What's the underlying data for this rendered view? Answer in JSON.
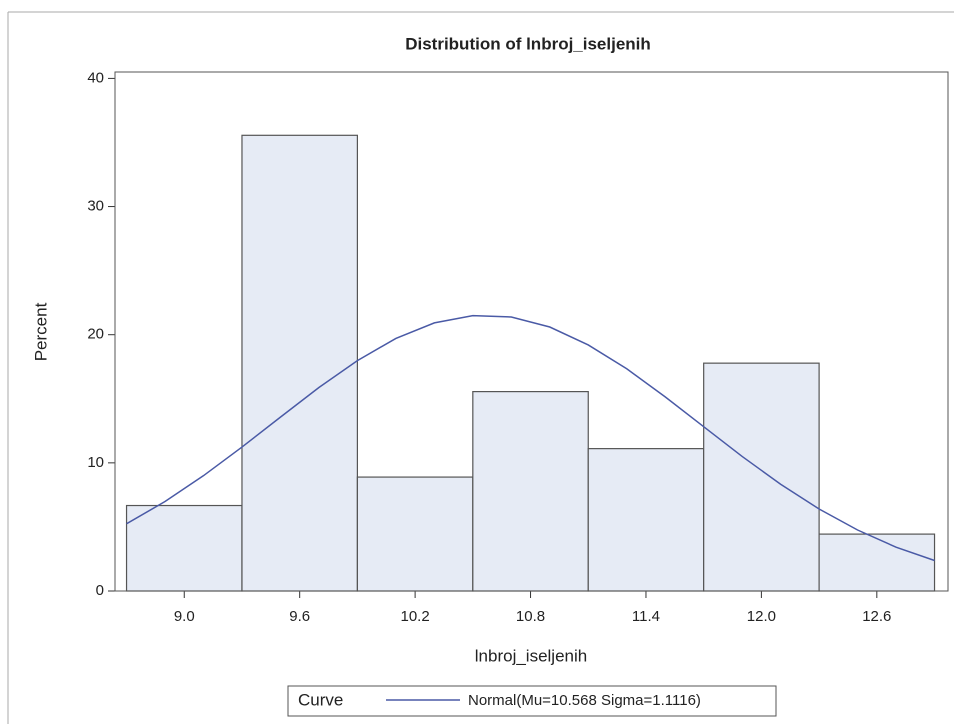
{
  "chart_data": {
    "type": "histogram",
    "title": "Distribution of lnbroj_iseljenih",
    "x_label": "lnbroj_iseljenih",
    "y_label": "Percent",
    "bins": [
      8.7,
      9.3,
      9.9,
      10.5,
      11.1,
      11.7,
      12.3,
      12.9
    ],
    "values": [
      6.67,
      35.56,
      8.89,
      15.56,
      11.11,
      17.78,
      4.44
    ],
    "color": "#e6ebf5",
    "edge_color": "#555555",
    "xlim": [
      8.64,
      12.97
    ],
    "ylim": [
      0,
      40.5
    ],
    "xticks": [
      {
        "value": 9,
        "label": "9.0"
      },
      9.6,
      10.2,
      10.8,
      11.4,
      {
        "value": 12,
        "label": "12.0"
      },
      12.6
    ],
    "yticks": [
      0,
      10,
      20,
      30,
      40
    ],
    "grid": false,
    "legend_title": "Curve",
    "curve": {
      "name": "Normal(Mu=10.568 Sigma=1.1116)",
      "color": "#4a5aa6",
      "x": [
        8.7,
        8.9,
        9.1,
        9.3,
        9.5,
        9.7,
        9.9,
        10.1,
        10.3,
        10.5,
        10.7,
        10.9,
        11.1,
        11.3,
        11.5,
        11.7,
        11.9,
        12.1,
        12.3,
        12.5,
        12.7,
        12.9
      ],
      "values": [
        5.25,
        6.98,
        9.0,
        11.23,
        13.57,
        15.88,
        17.98,
        19.71,
        20.92,
        21.49,
        21.38,
        20.6,
        19.2,
        17.34,
        15.15,
        12.82,
        10.5,
        8.33,
        6.4,
        4.76,
        3.42,
        2.38
      ]
    }
  }
}
